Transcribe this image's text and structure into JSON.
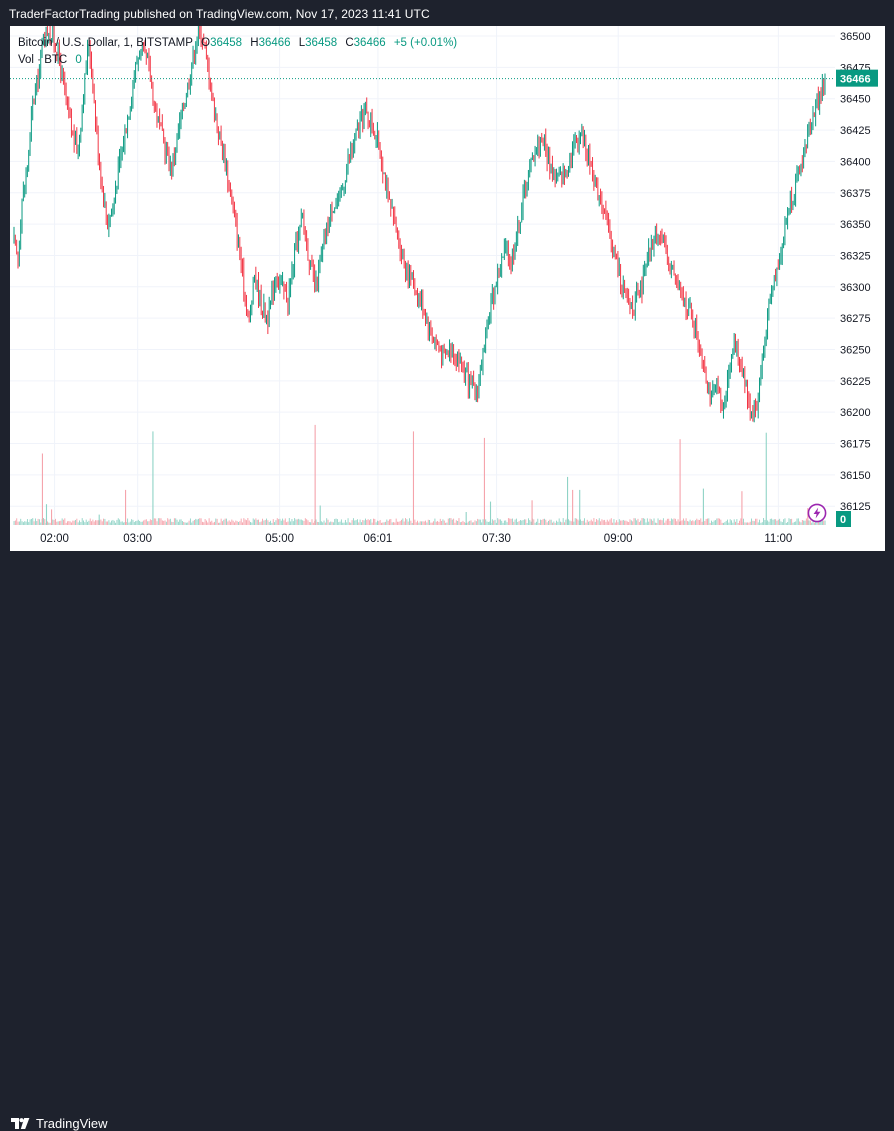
{
  "header": {
    "published_by": "TraderFactorTrading published on TradingView.com, Nov 17, 2023 11:41 UTC"
  },
  "legend": {
    "symbol": "Bitcoin / U.S. Dollar, 1, BITSTAMP",
    "open_label": "O",
    "open": "36458",
    "high_label": "H",
    "high": "36466",
    "low_label": "L",
    "low": "36458",
    "close_label": "C",
    "close": "36466",
    "change": "+5 (+0.01%)",
    "volume_label": "Vol · BTC",
    "volume": "0"
  },
  "footer": {
    "brand": "TradingView"
  },
  "chart_data": {
    "type": "candlestick",
    "symbol": "Bitcoin / U.S. Dollar",
    "interval": "1",
    "exchange": "BITSTAMP",
    "x_ticks": [
      "02:00",
      "03:00",
      "05:00",
      "06:01",
      "07:30",
      "09:00",
      "11:00"
    ],
    "y_ticks": [
      36125,
      36150,
      36175,
      36200,
      36225,
      36250,
      36275,
      36300,
      36325,
      36350,
      36375,
      36400,
      36425,
      36450,
      36475,
      36500
    ],
    "ylim": [
      36110,
      36508
    ],
    "last_price": 36466,
    "last_volume": 0,
    "price_path": [
      [
        0,
        36335
      ],
      [
        3,
        36320
      ],
      [
        6,
        36370
      ],
      [
        10,
        36395
      ],
      [
        14,
        36445
      ],
      [
        18,
        36465
      ],
      [
        22,
        36500
      ],
      [
        26,
        36505
      ],
      [
        30,
        36495
      ],
      [
        34,
        36480
      ],
      [
        40,
        36440
      ],
      [
        44,
        36420
      ],
      [
        48,
        36410
      ],
      [
        52,
        36455
      ],
      [
        56,
        36495
      ],
      [
        58,
        36475
      ],
      [
        62,
        36420
      ],
      [
        66,
        36380
      ],
      [
        70,
        36350
      ],
      [
        74,
        36365
      ],
      [
        80,
        36405
      ],
      [
        86,
        36440
      ],
      [
        90,
        36470
      ],
      [
        94,
        36488
      ],
      [
        100,
        36480
      ],
      [
        106,
        36440
      ],
      [
        112,
        36415
      ],
      [
        118,
        36395
      ],
      [
        124,
        36430
      ],
      [
        130,
        36460
      ],
      [
        136,
        36495
      ],
      [
        140,
        36505
      ],
      [
        145,
        36475
      ],
      [
        150,
        36440
      ],
      [
        154,
        36420
      ],
      [
        158,
        36400
      ],
      [
        163,
        36370
      ],
      [
        168,
        36335
      ],
      [
        172,
        36300
      ],
      [
        176,
        36270
      ],
      [
        180,
        36310
      ],
      [
        185,
        36285
      ],
      [
        190,
        36275
      ],
      [
        196,
        36310
      ],
      [
        200,
        36300
      ],
      [
        205,
        36290
      ],
      [
        210,
        36325
      ],
      [
        216,
        36355
      ],
      [
        222,
        36315
      ],
      [
        226,
        36300
      ],
      [
        232,
        36335
      ],
      [
        238,
        36365
      ],
      [
        244,
        36370
      ],
      [
        250,
        36400
      ],
      [
        256,
        36420
      ],
      [
        262,
        36440
      ],
      [
        268,
        36430
      ],
      [
        274,
        36410
      ],
      [
        280,
        36370
      ],
      [
        286,
        36345
      ],
      [
        292,
        36320
      ],
      [
        298,
        36305
      ],
      [
        304,
        36290
      ],
      [
        310,
        36270
      ],
      [
        316,
        36255
      ],
      [
        322,
        36245
      ],
      [
        328,
        36250
      ],
      [
        334,
        36240
      ],
      [
        340,
        36225
      ],
      [
        346,
        36215
      ],
      [
        352,
        36250
      ],
      [
        356,
        36280
      ],
      [
        362,
        36310
      ],
      [
        368,
        36330
      ],
      [
        372,
        36320
      ],
      [
        378,
        36350
      ],
      [
        382,
        36375
      ],
      [
        386,
        36395
      ],
      [
        390,
        36410
      ],
      [
        396,
        36420
      ],
      [
        400,
        36400
      ],
      [
        406,
        36385
      ],
      [
        412,
        36390
      ],
      [
        418,
        36410
      ],
      [
        424,
        36425
      ],
      [
        430,
        36405
      ],
      [
        436,
        36380
      ],
      [
        440,
        36370
      ],
      [
        446,
        36340
      ],
      [
        452,
        36315
      ],
      [
        458,
        36290
      ],
      [
        464,
        36285
      ],
      [
        470,
        36300
      ],
      [
        476,
        36330
      ],
      [
        482,
        36345
      ],
      [
        488,
        36325
      ],
      [
        494,
        36310
      ],
      [
        500,
        36290
      ],
      [
        506,
        36280
      ],
      [
        510,
        36265
      ],
      [
        514,
        36250
      ],
      [
        518,
        36230
      ],
      [
        522,
        36210
      ],
      [
        526,
        36220
      ],
      [
        530,
        36200
      ],
      [
        534,
        36225
      ],
      [
        538,
        36255
      ],
      [
        544,
        36240
      ],
      [
        548,
        36220
      ],
      [
        552,
        36200
      ],
      [
        556,
        36205
      ],
      [
        560,
        36240
      ],
      [
        566,
        36290
      ],
      [
        570,
        36310
      ],
      [
        576,
        36340
      ],
      [
        580,
        36365
      ],
      [
        586,
        36385
      ],
      [
        590,
        36400
      ],
      [
        596,
        36430
      ],
      [
        600,
        36445
      ],
      [
        604,
        36455
      ],
      [
        607,
        36466
      ]
    ],
    "volume_spikes": [
      [
        28,
        0.55
      ],
      [
        32,
        0.16
      ],
      [
        37,
        0.12
      ],
      [
        84,
        0.08
      ],
      [
        110,
        0.27
      ],
      [
        137,
        0.72
      ],
      [
        297,
        0.77
      ],
      [
        302,
        0.15
      ],
      [
        394,
        0.72
      ],
      [
        446,
        0.1
      ],
      [
        464,
        0.67
      ],
      [
        470,
        0.18
      ],
      [
        511,
        0.19
      ],
      [
        546,
        0.37
      ],
      [
        551,
        0.27
      ],
      [
        558,
        0.27
      ],
      [
        657,
        0.66
      ],
      [
        680,
        0.28
      ],
      [
        718,
        0.26
      ],
      [
        742,
        0.71
      ],
      [
        783,
        0.13
      ],
      [
        796,
        0.1
      ]
    ]
  }
}
